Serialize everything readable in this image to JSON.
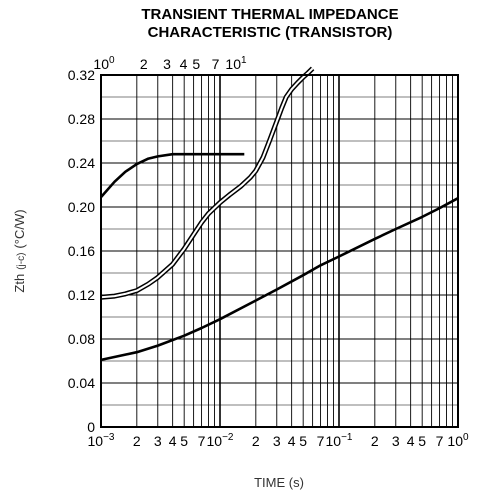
{
  "chart_data": {
    "type": "line",
    "title": [
      "TRANSIENT THERMAL IMPEDANCE",
      "CHARACTERISTIC (TRANSISTOR)"
    ],
    "xlabel": "TIME (s)",
    "ylabel_main": "Zth",
    "ylabel_sub": "(j-c)",
    "ylabel_unit": "(°C/W)",
    "x_scale": "log",
    "xlim": [
      0.001,
      1
    ],
    "ylim": [
      0,
      0.32
    ],
    "grid": true,
    "y_ticks": [
      "0",
      "0.04",
      "0.08",
      "0.12",
      "0.16",
      "0.20",
      "0.24",
      "0.28",
      "0.32"
    ],
    "x_ticks_bottom": [
      {
        "base": "10",
        "exp": "−3",
        "x": 0.001
      },
      {
        "text": "2",
        "x": 0.002
      },
      {
        "text": "3",
        "x": 0.003
      },
      {
        "text": "4",
        "x": 0.004
      },
      {
        "text": "5",
        "x": 0.005
      },
      {
        "text": "7",
        "x": 0.007
      },
      {
        "base": "10",
        "exp": "−2",
        "x": 0.01
      },
      {
        "text": "2",
        "x": 0.02
      },
      {
        "text": "3",
        "x": 0.03
      },
      {
        "text": "4",
        "x": 0.04
      },
      {
        "text": "5",
        "x": 0.05
      },
      {
        "text": "7",
        "x": 0.07
      },
      {
        "base": "10",
        "exp": "−1",
        "x": 0.1
      },
      {
        "text": "2",
        "x": 0.2
      },
      {
        "text": "3",
        "x": 0.3
      },
      {
        "text": "4",
        "x": 0.4
      },
      {
        "text": "5",
        "x": 0.5
      },
      {
        "text": "7",
        "x": 0.7
      },
      {
        "base": "10",
        "exp": "0",
        "x": 1
      }
    ],
    "x_ticks_top": [
      {
        "base": "10",
        "exp": "0",
        "t": 1
      },
      {
        "text": "2",
        "t": 2
      },
      {
        "text": "3",
        "t": 3
      },
      {
        "text": "4",
        "t": 4
      },
      {
        "text": "5",
        "t": 5
      },
      {
        "text": "7",
        "t": 7
      },
      {
        "base": "10",
        "exp": "1",
        "t": 10
      }
    ],
    "series": [
      {
        "style": "solid-thick",
        "x": [
          0.001,
          0.0013,
          0.0016,
          0.002,
          0.0025,
          0.003,
          0.004,
          0.005,
          0.006,
          0.008,
          0.01,
          0.013,
          0.016
        ],
        "y": [
          0.209,
          0.223,
          0.232,
          0.239,
          0.244,
          0.246,
          0.248,
          0.248,
          0.248,
          0.248,
          0.248,
          0.248,
          0.248
        ]
      },
      {
        "style": "double",
        "x": [
          0.001,
          0.0013,
          0.0016,
          0.002,
          0.0025,
          0.003,
          0.004,
          0.005,
          0.006,
          0.007,
          0.008,
          0.01,
          0.012,
          0.015,
          0.018,
          0.02,
          0.023,
          0.026,
          0.03,
          0.033,
          0.036,
          0.04,
          0.045,
          0.05,
          0.055,
          0.06
        ],
        "y": [
          0.118,
          0.119,
          0.121,
          0.124,
          0.13,
          0.136,
          0.148,
          0.162,
          0.175,
          0.186,
          0.194,
          0.204,
          0.211,
          0.219,
          0.227,
          0.233,
          0.245,
          0.26,
          0.278,
          0.29,
          0.3,
          0.307,
          0.313,
          0.318,
          0.322,
          0.326
        ]
      },
      {
        "style": "solid-thick",
        "x": [
          0.001,
          0.002,
          0.003,
          0.005,
          0.007,
          0.01,
          0.02,
          0.03,
          0.05,
          0.07,
          0.1,
          0.2,
          0.3,
          0.5,
          0.7,
          1
        ],
        "y": [
          0.061,
          0.068,
          0.074,
          0.083,
          0.09,
          0.098,
          0.115,
          0.125,
          0.138,
          0.147,
          0.155,
          0.171,
          0.18,
          0.191,
          0.199,
          0.208
        ]
      }
    ]
  }
}
